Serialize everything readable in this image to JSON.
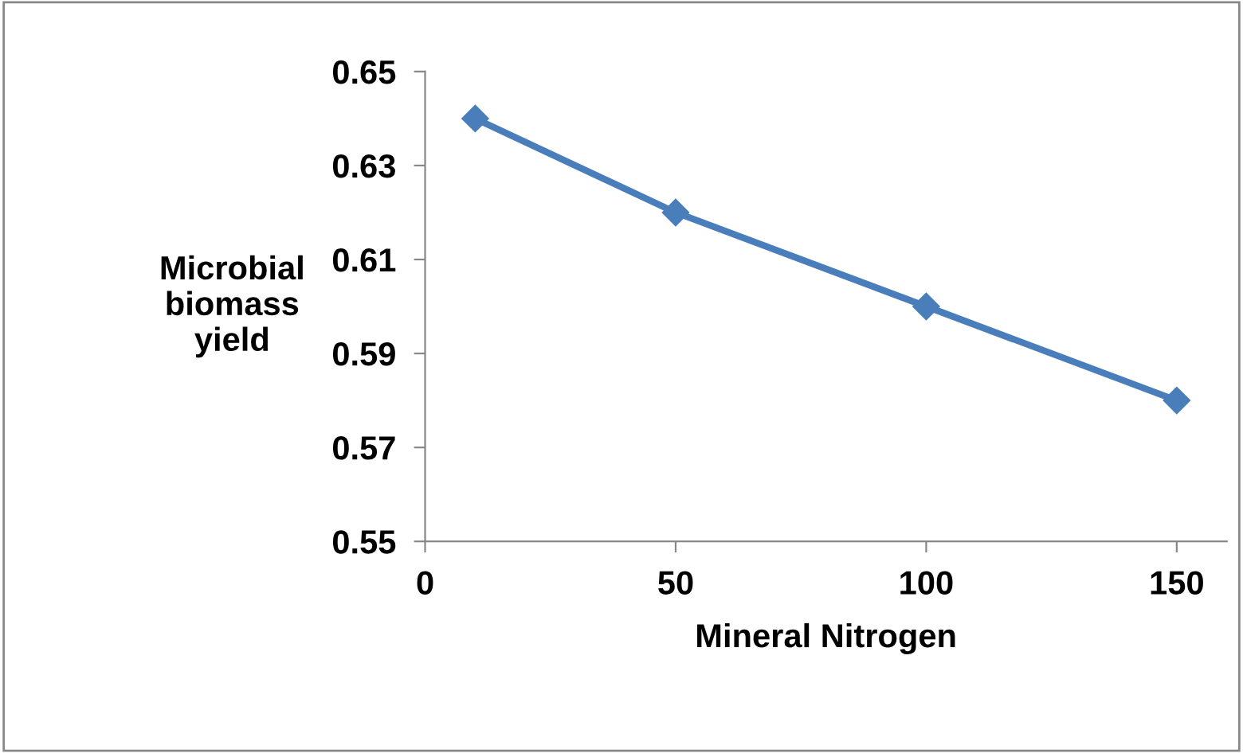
{
  "chart_data": {
    "type": "line",
    "xlabel": "Mineral Nitrogen",
    "ylabel": "Microbial\nbiomass\nyield",
    "x": [
      10,
      50,
      100,
      150
    ],
    "series": [
      {
        "color": "#4a7ebb",
        "values": [
          0.64,
          0.62,
          0.6,
          0.58
        ]
      }
    ],
    "xlim": [
      0,
      160
    ],
    "xticks": [
      0,
      50,
      100,
      150
    ],
    "ylim": [
      0.55,
      0.65
    ],
    "yticks": [
      {
        "value": 0.55,
        "label": "0.55"
      },
      {
        "value": 0.57,
        "label": "0.57"
      },
      {
        "value": 0.59,
        "label": "0.59"
      },
      {
        "value": 0.61,
        "label": "0.61"
      },
      {
        "value": 0.63,
        "label": "0.63"
      },
      {
        "value": 0.65,
        "label": "0.65"
      }
    ],
    "marker": "diamond",
    "line_style": "solid",
    "grid": false,
    "legend": false
  }
}
